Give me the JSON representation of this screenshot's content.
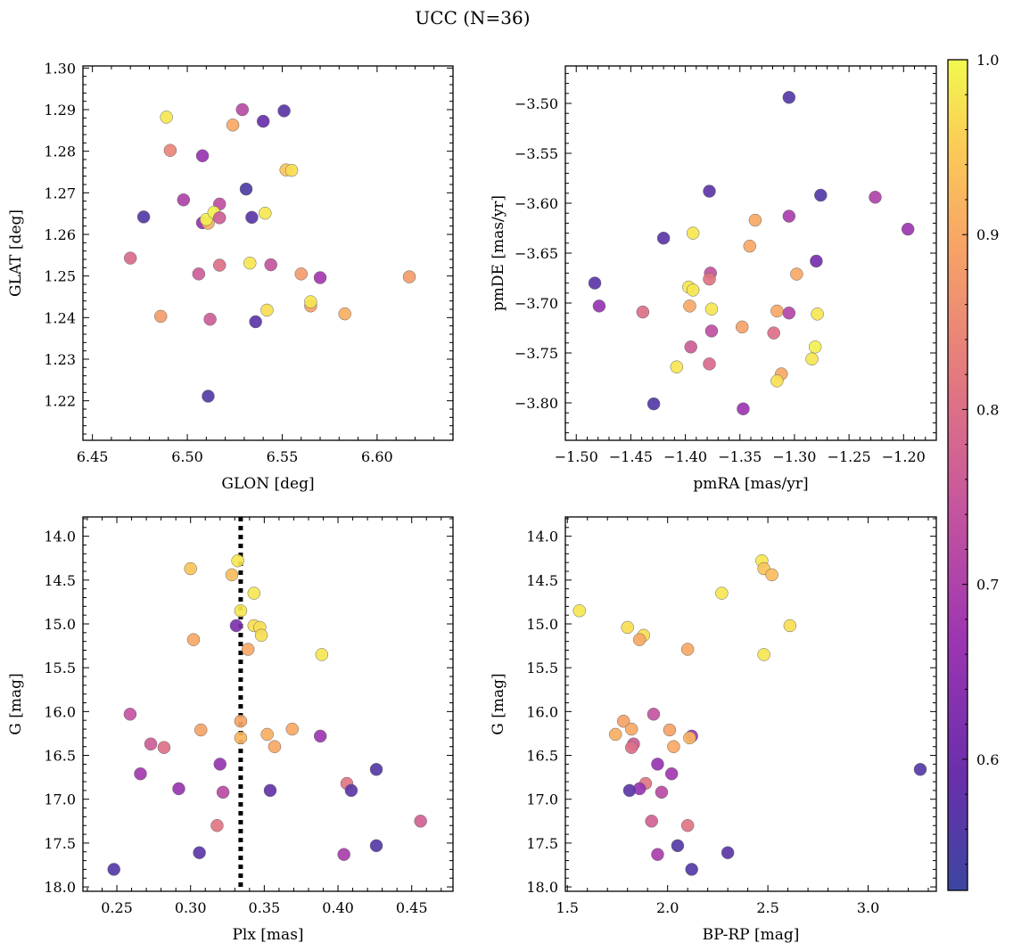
{
  "suptitle": "UCC (N=36)",
  "colormap": {
    "name": "plasma",
    "vmin": 0.525,
    "vmax": 1.0,
    "ticks": [
      0.6,
      0.7,
      0.8,
      0.9,
      1.0
    ],
    "tick_labels": [
      "0.6",
      "0.7",
      "0.8",
      "0.9",
      "1.0"
    ]
  },
  "chart_data": [
    {
      "type": "scatter",
      "title": "",
      "xlabel": "GLON [deg]",
      "ylabel": "GLAT [deg]",
      "xlim": [
        6.445,
        6.64
      ],
      "ylim": [
        1.2105,
        1.3005
      ],
      "y_inverted": false,
      "xticks": [
        6.45,
        6.5,
        6.55,
        6.6
      ],
      "xtick_labels": [
        "6.45",
        "6.50",
        "6.55",
        "6.60"
      ],
      "yticks": [
        1.22,
        1.23,
        1.24,
        1.25,
        1.26,
        1.27,
        1.28,
        1.29,
        1.3
      ],
      "ytick_labels": [
        "1.22",
        "1.23",
        "1.24",
        "1.25",
        "1.26",
        "1.27",
        "1.28",
        "1.29",
        "1.30"
      ],
      "points": [
        {
          "x": 6.489,
          "y": 1.2882,
          "c": 0.98
        },
        {
          "x": 6.491,
          "y": 1.2802,
          "c": 0.84
        },
        {
          "x": 6.508,
          "y": 1.2789,
          "c": 0.66
        },
        {
          "x": 6.529,
          "y": 1.29,
          "c": 0.72
        },
        {
          "x": 6.524,
          "y": 1.2863,
          "c": 0.9
        },
        {
          "x": 6.54,
          "y": 1.2872,
          "c": 0.59
        },
        {
          "x": 6.551,
          "y": 1.2897,
          "c": 0.57
        },
        {
          "x": 6.552,
          "y": 1.2755,
          "c": 0.94
        },
        {
          "x": 6.555,
          "y": 1.2754,
          "c": 0.97
        },
        {
          "x": 6.531,
          "y": 1.2709,
          "c": 0.55
        },
        {
          "x": 6.498,
          "y": 1.2683,
          "c": 0.7
        },
        {
          "x": 6.517,
          "y": 1.2673,
          "c": 0.73
        },
        {
          "x": 6.477,
          "y": 1.2642,
          "c": 0.56
        },
        {
          "x": 6.508,
          "y": 1.2628,
          "c": 0.66
        },
        {
          "x": 6.511,
          "y": 1.2627,
          "c": 0.91
        },
        {
          "x": 6.51,
          "y": 1.2636,
          "c": 0.99
        },
        {
          "x": 6.514,
          "y": 1.2653,
          "c": 0.99
        },
        {
          "x": 6.517,
          "y": 1.264,
          "c": 0.76
        },
        {
          "x": 6.534,
          "y": 1.2641,
          "c": 0.57
        },
        {
          "x": 6.541,
          "y": 1.2651,
          "c": 0.98
        },
        {
          "x": 6.47,
          "y": 1.2543,
          "c": 0.79
        },
        {
          "x": 6.506,
          "y": 1.2505,
          "c": 0.76
        },
        {
          "x": 6.517,
          "y": 1.2526,
          "c": 0.8
        },
        {
          "x": 6.533,
          "y": 1.2531,
          "c": 0.98
        },
        {
          "x": 6.544,
          "y": 1.2527,
          "c": 0.74
        },
        {
          "x": 6.56,
          "y": 1.2505,
          "c": 0.88
        },
        {
          "x": 6.57,
          "y": 1.2496,
          "c": 0.68
        },
        {
          "x": 6.617,
          "y": 1.2498,
          "c": 0.88
        },
        {
          "x": 6.486,
          "y": 1.2403,
          "c": 0.88
        },
        {
          "x": 6.512,
          "y": 1.2396,
          "c": 0.76
        },
        {
          "x": 6.536,
          "y": 1.239,
          "c": 0.57
        },
        {
          "x": 6.542,
          "y": 1.2418,
          "c": 0.97
        },
        {
          "x": 6.565,
          "y": 1.2428,
          "c": 0.89
        },
        {
          "x": 6.565,
          "y": 1.2438,
          "c": 0.98
        },
        {
          "x": 6.583,
          "y": 1.2409,
          "c": 0.91
        },
        {
          "x": 6.511,
          "y": 1.2211,
          "c": 0.56
        }
      ]
    },
    {
      "type": "scatter",
      "title": "",
      "xlabel": "pmRA [mas/yr]",
      "ylabel": "pmDE [mas/yr]",
      "xlim": [
        -1.51,
        -1.17
      ],
      "ylim": [
        -3.8375,
        -3.4625
      ],
      "y_inverted": false,
      "xticks": [
        -1.5,
        -1.45,
        -1.4,
        -1.35,
        -1.3,
        -1.25,
        -1.2
      ],
      "xtick_labels": [
        "−1.50",
        "−1.45",
        "−1.40",
        "−1.35",
        "−1.30",
        "−1.25",
        "−1.20"
      ],
      "yticks": [
        -3.8,
        -3.75,
        -3.7,
        -3.65,
        -3.6,
        -3.55,
        -3.5
      ],
      "ytick_labels": [
        "−3.80",
        "−3.75",
        "−3.70",
        "−3.65",
        "−3.60",
        "−3.55",
        "−3.50"
      ],
      "points": [
        {
          "x": -1.305,
          "y": -3.494,
          "c": 0.56
        },
        {
          "x": -1.378,
          "y": -3.588,
          "c": 0.57
        },
        {
          "x": -1.276,
          "y": -3.592,
          "c": 0.56
        },
        {
          "x": -1.226,
          "y": -3.594,
          "c": 0.7
        },
        {
          "x": -1.196,
          "y": -3.626,
          "c": 0.67
        },
        {
          "x": -1.305,
          "y": -3.613,
          "c": 0.69
        },
        {
          "x": -1.336,
          "y": -3.617,
          "c": 0.9
        },
        {
          "x": -1.42,
          "y": -3.635,
          "c": 0.57
        },
        {
          "x": -1.393,
          "y": -3.63,
          "c": 0.98
        },
        {
          "x": -1.341,
          "y": -3.643,
          "c": 0.9
        },
        {
          "x": -1.28,
          "y": -3.658,
          "c": 0.61
        },
        {
          "x": -1.298,
          "y": -3.671,
          "c": 0.9
        },
        {
          "x": -1.377,
          "y": -3.67,
          "c": 0.74
        },
        {
          "x": -1.378,
          "y": -3.676,
          "c": 0.81
        },
        {
          "x": -1.483,
          "y": -3.68,
          "c": 0.57
        },
        {
          "x": -1.397,
          "y": -3.684,
          "c": 0.98
        },
        {
          "x": -1.393,
          "y": -3.687,
          "c": 0.98
        },
        {
          "x": -1.479,
          "y": -3.703,
          "c": 0.66
        },
        {
          "x": -1.396,
          "y": -3.703,
          "c": 0.9
        },
        {
          "x": -1.376,
          "y": -3.706,
          "c": 0.98
        },
        {
          "x": -1.439,
          "y": -3.709,
          "c": 0.8
        },
        {
          "x": -1.316,
          "y": -3.708,
          "c": 0.9
        },
        {
          "x": -1.305,
          "y": -3.71,
          "c": 0.71
        },
        {
          "x": -1.279,
          "y": -3.711,
          "c": 0.98
        },
        {
          "x": -1.376,
          "y": -3.728,
          "c": 0.73
        },
        {
          "x": -1.348,
          "y": -3.724,
          "c": 0.89
        },
        {
          "x": -1.319,
          "y": -3.73,
          "c": 0.8
        },
        {
          "x": -1.395,
          "y": -3.744,
          "c": 0.76
        },
        {
          "x": -1.281,
          "y": -3.744,
          "c": 0.99
        },
        {
          "x": -1.284,
          "y": -3.756,
          "c": 0.98
        },
        {
          "x": -1.378,
          "y": -3.761,
          "c": 0.79
        },
        {
          "x": -1.408,
          "y": -3.764,
          "c": 0.98
        },
        {
          "x": -1.312,
          "y": -3.771,
          "c": 0.9
        },
        {
          "x": -1.316,
          "y": -3.778,
          "c": 0.97
        },
        {
          "x": -1.429,
          "y": -3.801,
          "c": 0.56
        },
        {
          "x": -1.347,
          "y": -3.806,
          "c": 0.67
        }
      ]
    },
    {
      "type": "scatter",
      "title": "",
      "xlabel": "Plx [mas]",
      "ylabel": "G [mag]",
      "xlim": [
        0.227,
        0.478
      ],
      "ylim": [
        18.05,
        13.78
      ],
      "y_inverted": true,
      "xticks": [
        0.25,
        0.3,
        0.35,
        0.4,
        0.45
      ],
      "xtick_labels": [
        "0.25",
        "0.30",
        "0.35",
        "0.40",
        "0.45"
      ],
      "yticks": [
        14.0,
        14.5,
        15.0,
        15.5,
        16.0,
        16.5,
        17.0,
        17.5,
        18.0
      ],
      "ytick_labels": [
        "14.0",
        "14.5",
        "15.0",
        "15.5",
        "16.0",
        "16.5",
        "17.0",
        "17.5",
        "18.0"
      ],
      "vline": {
        "x": 0.334,
        "style": "dotted",
        "color": "#000000"
      },
      "points": [
        {
          "x": 0.332,
          "y": 14.28,
          "c": 0.98
        },
        {
          "x": 0.3,
          "y": 14.37,
          "c": 0.94
        },
        {
          "x": 0.328,
          "y": 14.44,
          "c": 0.93
        },
        {
          "x": 0.343,
          "y": 14.65,
          "c": 0.98
        },
        {
          "x": 0.334,
          "y": 14.85,
          "c": 0.98
        },
        {
          "x": 0.343,
          "y": 15.02,
          "c": 0.97
        },
        {
          "x": 0.331,
          "y": 15.02,
          "c": 0.62
        },
        {
          "x": 0.347,
          "y": 15.04,
          "c": 0.97
        },
        {
          "x": 0.348,
          "y": 15.13,
          "c": 0.97
        },
        {
          "x": 0.302,
          "y": 15.18,
          "c": 0.9
        },
        {
          "x": 0.339,
          "y": 15.29,
          "c": 0.9
        },
        {
          "x": 0.389,
          "y": 15.35,
          "c": 0.98
        },
        {
          "x": 0.259,
          "y": 16.03,
          "c": 0.74
        },
        {
          "x": 0.334,
          "y": 16.11,
          "c": 0.89
        },
        {
          "x": 0.307,
          "y": 16.21,
          "c": 0.89
        },
        {
          "x": 0.369,
          "y": 16.2,
          "c": 0.9
        },
        {
          "x": 0.352,
          "y": 16.26,
          "c": 0.91
        },
        {
          "x": 0.388,
          "y": 16.28,
          "c": 0.67
        },
        {
          "x": 0.334,
          "y": 16.3,
          "c": 0.92
        },
        {
          "x": 0.273,
          "y": 16.37,
          "c": 0.76
        },
        {
          "x": 0.357,
          "y": 16.4,
          "c": 0.9
        },
        {
          "x": 0.282,
          "y": 16.41,
          "c": 0.8
        },
        {
          "x": 0.32,
          "y": 16.6,
          "c": 0.66
        },
        {
          "x": 0.426,
          "y": 16.66,
          "c": 0.56
        },
        {
          "x": 0.266,
          "y": 16.71,
          "c": 0.68
        },
        {
          "x": 0.406,
          "y": 16.82,
          "c": 0.81
        },
        {
          "x": 0.292,
          "y": 16.88,
          "c": 0.66
        },
        {
          "x": 0.409,
          "y": 16.9,
          "c": 0.57
        },
        {
          "x": 0.354,
          "y": 16.9,
          "c": 0.58
        },
        {
          "x": 0.322,
          "y": 16.92,
          "c": 0.72
        },
        {
          "x": 0.456,
          "y": 17.25,
          "c": 0.77
        },
        {
          "x": 0.318,
          "y": 17.3,
          "c": 0.81
        },
        {
          "x": 0.426,
          "y": 17.53,
          "c": 0.56
        },
        {
          "x": 0.306,
          "y": 17.61,
          "c": 0.57
        },
        {
          "x": 0.404,
          "y": 17.63,
          "c": 0.69
        },
        {
          "x": 0.248,
          "y": 17.8,
          "c": 0.56
        }
      ]
    },
    {
      "type": "scatter",
      "title": "",
      "xlabel": "BP-RP [mag]",
      "ylabel": "G [mag]",
      "xlim": [
        1.49,
        3.34
      ],
      "ylim": [
        18.05,
        13.78
      ],
      "y_inverted": true,
      "xticks": [
        1.5,
        2.0,
        2.5,
        3.0
      ],
      "xtick_labels": [
        "1.5",
        "2.0",
        "2.5",
        "3.0"
      ],
      "yticks": [
        14.0,
        14.5,
        15.0,
        15.5,
        16.0,
        16.5,
        17.0,
        17.5,
        18.0
      ],
      "ytick_labels": [
        "14.0",
        "14.5",
        "15.0",
        "15.5",
        "16.0",
        "16.5",
        "17.0",
        "17.5",
        "18.0"
      ],
      "points": [
        {
          "x": 2.47,
          "y": 14.28,
          "c": 0.98
        },
        {
          "x": 2.48,
          "y": 14.37,
          "c": 0.94
        },
        {
          "x": 2.52,
          "y": 14.44,
          "c": 0.93
        },
        {
          "x": 2.27,
          "y": 14.65,
          "c": 0.98
        },
        {
          "x": 1.56,
          "y": 14.85,
          "c": 0.98
        },
        {
          "x": 2.61,
          "y": 15.02,
          "c": 0.97
        },
        {
          "x": 1.8,
          "y": 15.04,
          "c": 0.97
        },
        {
          "x": 1.88,
          "y": 15.13,
          "c": 0.97
        },
        {
          "x": 1.86,
          "y": 15.18,
          "c": 0.9
        },
        {
          "x": 2.1,
          "y": 15.29,
          "c": 0.9
        },
        {
          "x": 2.48,
          "y": 15.35,
          "c": 0.98
        },
        {
          "x": 1.93,
          "y": 16.03,
          "c": 0.74
        },
        {
          "x": 1.78,
          "y": 16.11,
          "c": 0.89
        },
        {
          "x": 2.01,
          "y": 16.21,
          "c": 0.89
        },
        {
          "x": 1.82,
          "y": 16.2,
          "c": 0.9
        },
        {
          "x": 1.74,
          "y": 16.26,
          "c": 0.91
        },
        {
          "x": 2.12,
          "y": 16.28,
          "c": 0.67
        },
        {
          "x": 2.11,
          "y": 16.3,
          "c": 0.92
        },
        {
          "x": 1.83,
          "y": 16.37,
          "c": 0.76
        },
        {
          "x": 2.03,
          "y": 16.4,
          "c": 0.9
        },
        {
          "x": 1.82,
          "y": 16.41,
          "c": 0.8
        },
        {
          "x": 1.95,
          "y": 16.6,
          "c": 0.66
        },
        {
          "x": 3.26,
          "y": 16.66,
          "c": 0.56
        },
        {
          "x": 2.02,
          "y": 16.71,
          "c": 0.68
        },
        {
          "x": 1.89,
          "y": 16.82,
          "c": 0.81
        },
        {
          "x": 1.86,
          "y": 16.88,
          "c": 0.66
        },
        {
          "x": 1.81,
          "y": 16.9,
          "c": 0.57
        },
        {
          "x": 1.97,
          "y": 16.92,
          "c": 0.72
        },
        {
          "x": 1.92,
          "y": 17.25,
          "c": 0.77
        },
        {
          "x": 2.1,
          "y": 17.3,
          "c": 0.81
        },
        {
          "x": 2.05,
          "y": 17.53,
          "c": 0.56
        },
        {
          "x": 2.3,
          "y": 17.61,
          "c": 0.57
        },
        {
          "x": 1.95,
          "y": 17.63,
          "c": 0.69
        },
        {
          "x": 2.12,
          "y": 17.8,
          "c": 0.56
        }
      ]
    }
  ]
}
